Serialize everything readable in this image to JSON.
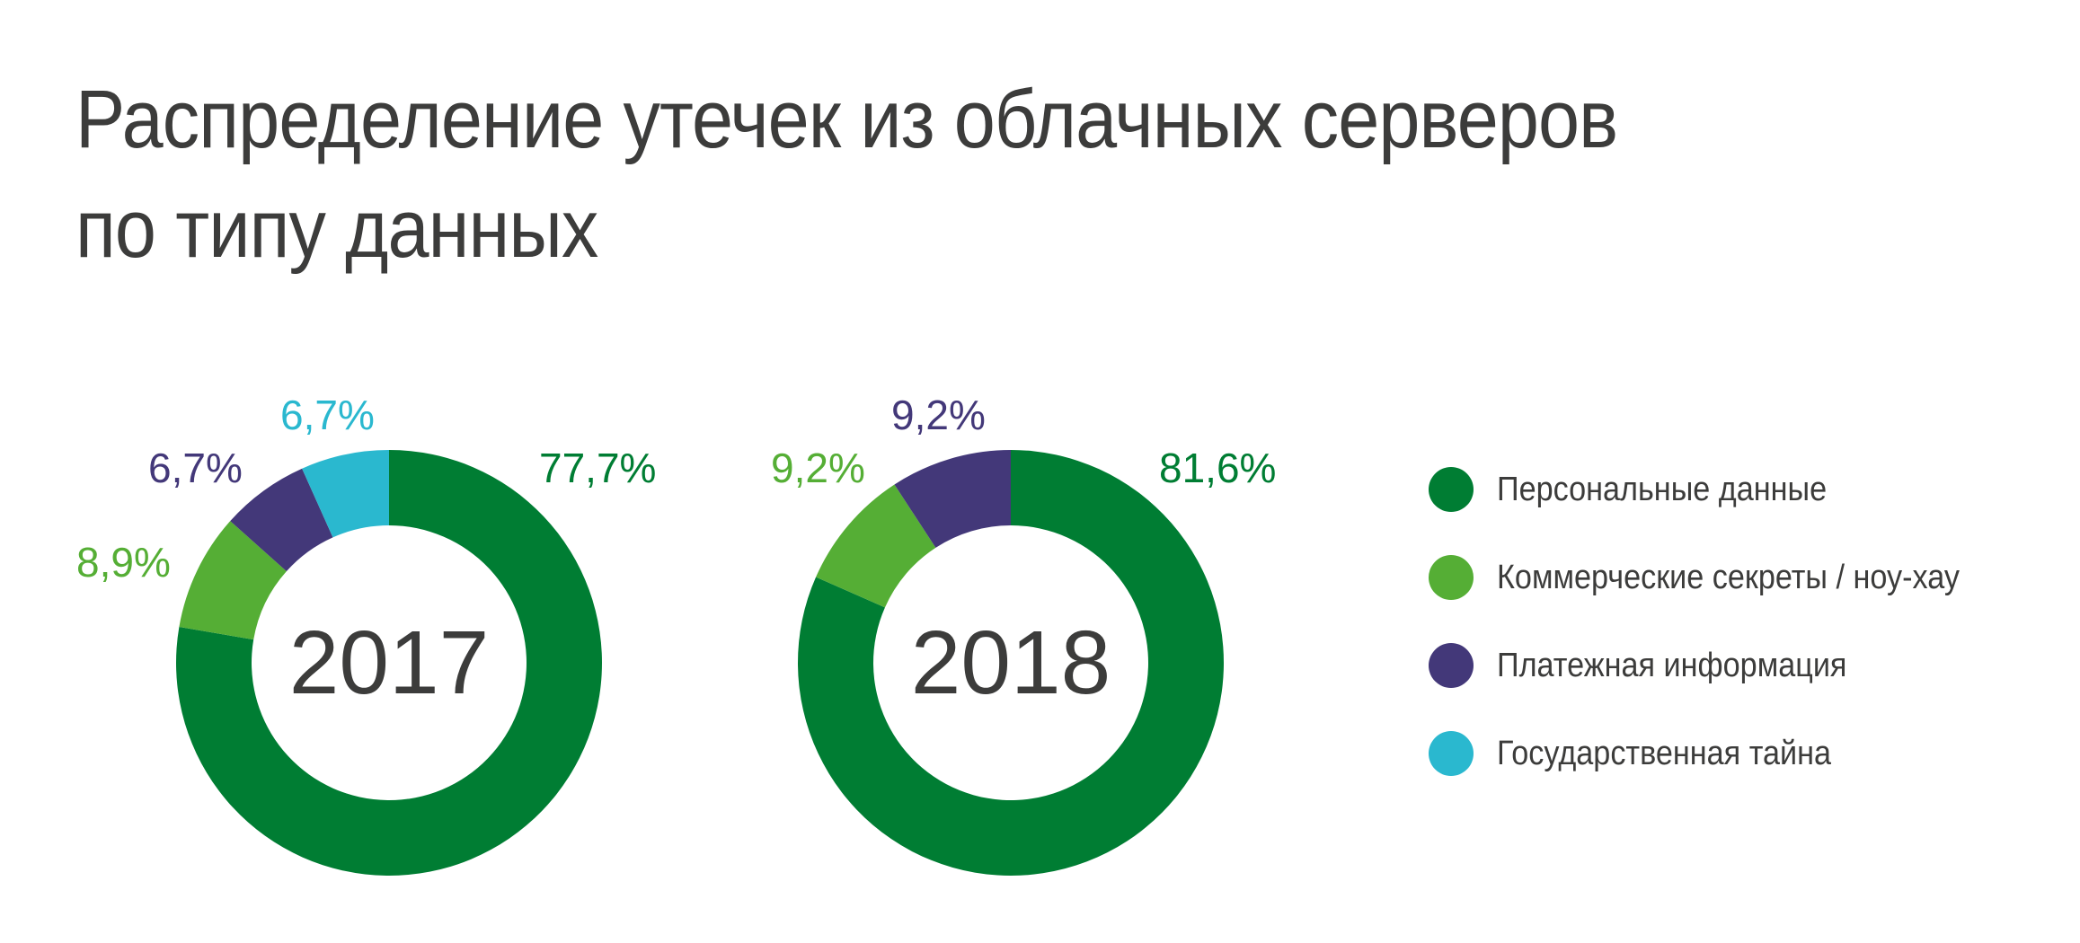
{
  "title": {
    "line1": "Распределение утечек из облачных серверов",
    "line2": "по типу данных"
  },
  "colors": {
    "personal": "#007d33",
    "commercial": "#55ae35",
    "payment": "#433879",
    "state": "#2ab8cf",
    "text": "#3c3c3b"
  },
  "legend": {
    "items": [
      {
        "label": "Персональные данные",
        "color": "#007d33"
      },
      {
        "label": "Коммерческие секреты / ноу-хау",
        "color": "#55ae35"
      },
      {
        "label": "Платежная информация",
        "color": "#433879"
      },
      {
        "label": "Государственная тайна",
        "color": "#2ab8cf"
      }
    ]
  },
  "donuts": [
    {
      "year": "2017",
      "labels": {
        "personal": "77,7%",
        "commercial": "8,9%",
        "payment": "6,7%",
        "state": "6,7%"
      }
    },
    {
      "year": "2018",
      "labels": {
        "personal": "81,6%",
        "commercial": "9,2%",
        "payment": "9,2%"
      }
    }
  ],
  "chart_data": {
    "type": "pie",
    "title": "Распределение утечек из облачных серверов по типу данных",
    "categories": [
      "Персональные данные",
      "Коммерческие секреты / ноу-хау",
      "Платежная информация",
      "Государственная тайна"
    ],
    "series": [
      {
        "name": "2017",
        "values": [
          77.7,
          8.9,
          6.7,
          6.7
        ]
      },
      {
        "name": "2018",
        "values": [
          81.6,
          9.2,
          9.2,
          0
        ]
      }
    ],
    "style": "donut",
    "legend_position": "right"
  }
}
